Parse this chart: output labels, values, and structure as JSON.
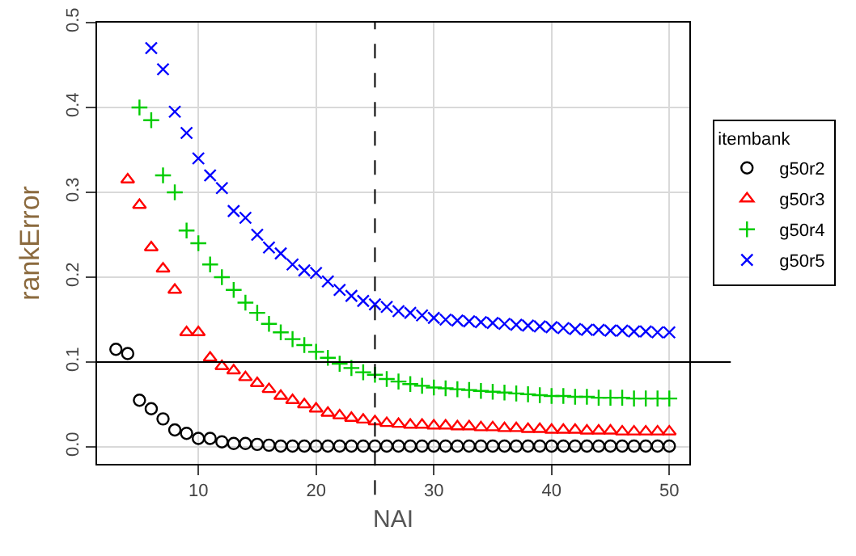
{
  "chart_data": {
    "type": "scatter",
    "xlabel": "NAI",
    "ylabel": "rankError",
    "legend_title": "itembank",
    "legend": "right",
    "grid": true,
    "xlim": [
      1.4,
      51.7
    ],
    "xticks": [
      10,
      20,
      30,
      40,
      50
    ],
    "ylim": [
      -0.02,
      0.5
    ],
    "yticks": [
      {
        "value": 0,
        "label": "0.0"
      },
      0.1,
      0.2,
      0.3,
      0.4,
      0.5
    ],
    "ref_lines": [
      {
        "axis": "x",
        "value": 25,
        "line_style": "dashed",
        "color": "#000000"
      },
      {
        "axis": "y",
        "value": 0.1,
        "line_style": "solid",
        "color": "#000000"
      }
    ],
    "series": [
      {
        "name": "g50r2",
        "color": "#000000",
        "marker": "circle",
        "x": [
          3,
          4,
          5,
          6,
          7,
          8,
          9,
          10,
          11,
          12,
          13,
          14,
          15,
          16,
          17,
          18,
          19,
          20,
          21,
          22,
          23,
          24,
          25,
          26,
          27,
          28,
          29,
          30,
          31,
          32,
          33,
          34,
          35,
          36,
          37,
          38,
          39,
          40,
          41,
          42,
          43,
          44,
          45,
          46,
          47,
          48,
          49,
          50
        ],
        "values": [
          0.115,
          0.11,
          0.055,
          0.045,
          0.033,
          0.02,
          0.016,
          0.01,
          0.01,
          0.006,
          0.004,
          0.004,
          0.003,
          0.002,
          0.001,
          0.001,
          0.001,
          0.001,
          0.001,
          0.001,
          0.001,
          0.001,
          0.001,
          0.001,
          0.001,
          0.001,
          0.001,
          0.001,
          0.001,
          0.001,
          0.001,
          0.001,
          0.001,
          0.001,
          0.001,
          0.001,
          0.001,
          0.001,
          0.001,
          0.001,
          0.001,
          0.001,
          0.001,
          0.001,
          0.001,
          0.001,
          0.001,
          0.001
        ]
      },
      {
        "name": "g50r3",
        "color": "#ff0000",
        "marker": "triangle",
        "x": [
          4,
          5,
          6,
          7,
          8,
          9,
          10,
          11,
          12,
          13,
          14,
          15,
          16,
          17,
          18,
          19,
          20,
          21,
          22,
          23,
          24,
          25,
          26,
          27,
          28,
          29,
          30,
          31,
          32,
          33,
          34,
          35,
          36,
          37,
          38,
          39,
          40,
          41,
          42,
          43,
          44,
          45,
          46,
          47,
          48,
          49,
          50
        ],
        "values": [
          0.315,
          0.285,
          0.235,
          0.21,
          0.185,
          0.135,
          0.135,
          0.105,
          0.095,
          0.09,
          0.082,
          0.075,
          0.068,
          0.06,
          0.055,
          0.05,
          0.045,
          0.04,
          0.037,
          0.034,
          0.032,
          0.03,
          0.028,
          0.027,
          0.026,
          0.026,
          0.025,
          0.025,
          0.024,
          0.024,
          0.023,
          0.023,
          0.022,
          0.022,
          0.021,
          0.021,
          0.02,
          0.02,
          0.02,
          0.019,
          0.019,
          0.019,
          0.018,
          0.018,
          0.018,
          0.018,
          0.018
        ]
      },
      {
        "name": "g50r4",
        "color": "#00cc00",
        "marker": "cross",
        "x": [
          5,
          6,
          7,
          8,
          9,
          10,
          11,
          12,
          13,
          14,
          15,
          16,
          17,
          18,
          19,
          20,
          21,
          22,
          23,
          24,
          25,
          26,
          27,
          28,
          29,
          30,
          31,
          32,
          33,
          34,
          35,
          36,
          37,
          38,
          39,
          40,
          41,
          42,
          43,
          44,
          45,
          46,
          47,
          48,
          49,
          50
        ],
        "values": [
          0.4,
          0.385,
          0.32,
          0.3,
          0.255,
          0.24,
          0.215,
          0.2,
          0.185,
          0.17,
          0.158,
          0.145,
          0.135,
          0.127,
          0.12,
          0.112,
          0.105,
          0.098,
          0.093,
          0.088,
          0.085,
          0.08,
          0.077,
          0.074,
          0.072,
          0.07,
          0.069,
          0.068,
          0.067,
          0.066,
          0.065,
          0.064,
          0.063,
          0.062,
          0.061,
          0.06,
          0.06,
          0.059,
          0.059,
          0.058,
          0.058,
          0.058,
          0.057,
          0.057,
          0.057,
          0.057
        ]
      },
      {
        "name": "g50r5",
        "color": "#0000ff",
        "marker": "x",
        "x": [
          6,
          7,
          8,
          9,
          10,
          11,
          12,
          13,
          14,
          15,
          16,
          17,
          18,
          19,
          20,
          21,
          22,
          23,
          24,
          25,
          26,
          27,
          28,
          29,
          30,
          31,
          32,
          33,
          34,
          35,
          36,
          37,
          38,
          39,
          40,
          41,
          42,
          43,
          44,
          45,
          46,
          47,
          48,
          49,
          50
        ],
        "values": [
          0.47,
          0.445,
          0.395,
          0.37,
          0.34,
          0.32,
          0.305,
          0.278,
          0.27,
          0.25,
          0.235,
          0.228,
          0.215,
          0.208,
          0.205,
          0.195,
          0.185,
          0.178,
          0.172,
          0.168,
          0.165,
          0.16,
          0.158,
          0.155,
          0.152,
          0.15,
          0.149,
          0.148,
          0.147,
          0.146,
          0.145,
          0.144,
          0.143,
          0.142,
          0.141,
          0.14,
          0.139,
          0.138,
          0.138,
          0.137,
          0.137,
          0.136,
          0.136,
          0.135,
          0.135
        ]
      }
    ]
  }
}
